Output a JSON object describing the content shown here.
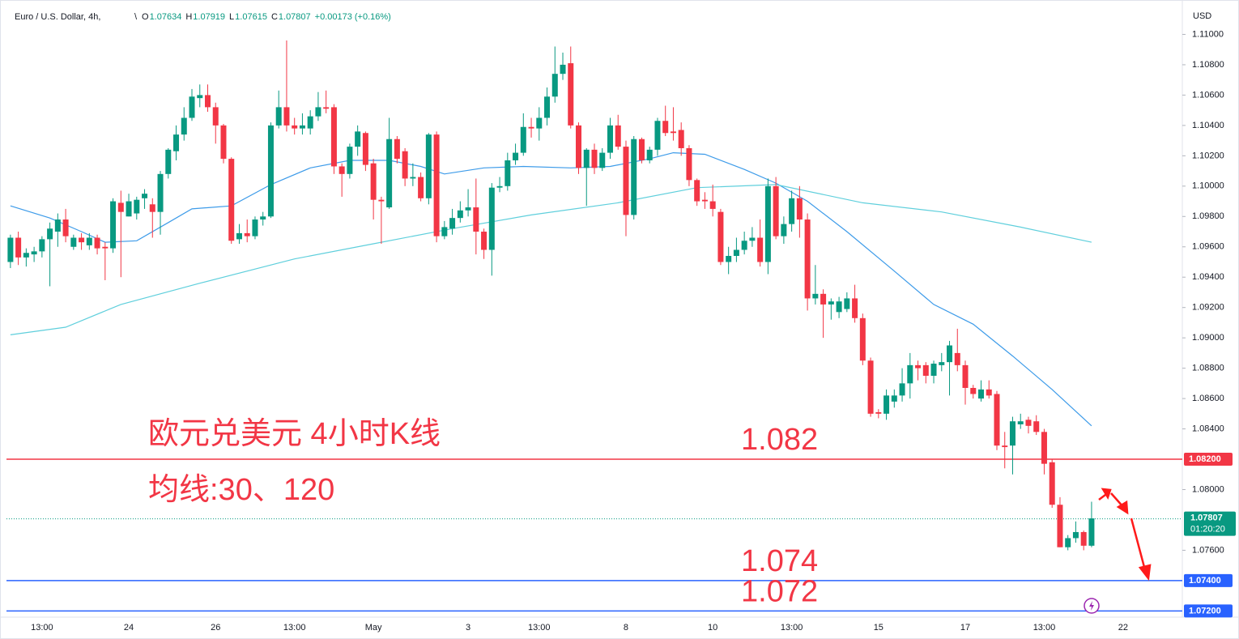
{
  "chart_data": {
    "type": "candlestick",
    "header": {
      "symbol": "Euro / U.S. Dollar, 4h,",
      "ohlc": [
        {
          "key": "O",
          "value": "1.07634"
        },
        {
          "key": "H",
          "value": "1.07919"
        },
        {
          "key": "L",
          "value": "1.07615"
        },
        {
          "key": "C",
          "value": "1.07807"
        }
      ],
      "change": "+0.00173 (+0.16%)"
    },
    "currency": "USD",
    "annotations": [
      "欧元兑美元 4小时K线",
      "均线:30、120"
    ],
    "up_color": "#089981",
    "down_color": "#f23645",
    "grid": false,
    "ylim": [
      1.0717,
      1.112
    ],
    "yticks": [
      {
        "value": 1.11,
        "label": "1.11000"
      },
      {
        "value": 1.108,
        "label": "1.10800"
      },
      {
        "value": 1.106,
        "label": "1.10600"
      },
      {
        "value": 1.104,
        "label": "1.10400"
      },
      {
        "value": 1.102,
        "label": "1.10200"
      },
      {
        "value": 1.1,
        "label": "1.10000"
      },
      {
        "value": 1.098,
        "label": "1.09800"
      },
      {
        "value": 1.096,
        "label": "1.09600"
      },
      {
        "value": 1.094,
        "label": "1.09400"
      },
      {
        "value": 1.092,
        "label": "1.09200"
      },
      {
        "value": 1.09,
        "label": "1.09000"
      },
      {
        "value": 1.088,
        "label": "1.08800"
      },
      {
        "value": 1.086,
        "label": "1.08600"
      },
      {
        "value": 1.084,
        "label": "1.08400"
      },
      {
        "value": 1.08,
        "label": "1.08000"
      },
      {
        "value": 1.076,
        "label": "1.07600"
      }
    ],
    "categories": [
      null,
      null,
      null,
      null,
      "13:00",
      null,
      null,
      null,
      null,
      null,
      null,
      null,
      null,
      null,
      null,
      "24",
      null,
      null,
      null,
      null,
      null,
      null,
      null,
      null,
      null,
      null,
      "26",
      null,
      null,
      null,
      null,
      null,
      null,
      null,
      null,
      null,
      "13:00",
      null,
      null,
      null,
      null,
      null,
      null,
      null,
      null,
      null,
      "May",
      null,
      null,
      null,
      null,
      null,
      null,
      null,
      null,
      null,
      null,
      null,
      "3",
      null,
      null,
      null,
      null,
      null,
      null,
      null,
      null,
      "13:00",
      null,
      null,
      null,
      null,
      null,
      null,
      null,
      null,
      null,
      null,
      "8",
      null,
      null,
      null,
      null,
      null,
      null,
      null,
      null,
      null,
      null,
      "10",
      null,
      null,
      null,
      null,
      null,
      null,
      null,
      null,
      null,
      "13:00",
      null,
      null,
      null,
      null,
      null,
      null,
      null,
      null,
      null,
      null,
      "15",
      null,
      null,
      null,
      null,
      null,
      null,
      null,
      null,
      null,
      null,
      "17",
      null,
      null,
      null,
      null,
      null,
      null,
      null,
      null,
      null,
      "13:00",
      null,
      null,
      null,
      null,
      null,
      null,
      null,
      null,
      null,
      "22",
      null,
      null,
      null,
      null,
      null,
      null,
      null
    ],
    "open": [
      1.095,
      1.0966,
      1.0953,
      1.0955,
      1.0957,
      1.0965,
      1.097,
      1.0978,
      1.096,
      1.0966,
      1.0961,
      1.0966,
      1.096,
      1.0959,
      1.0989,
      1.098,
      1.0982,
      1.0992,
      1.0988,
      1.0983,
      1.1008,
      1.1023,
      1.1034,
      1.1045,
      1.1058,
      1.106,
      1.1052,
      1.104,
      1.1018,
      1.0965,
      1.0969,
      1.0967,
      1.0978,
      1.098,
      1.104,
      1.1052,
      1.104,
      1.1038,
      1.1038,
      1.1046,
      1.1052,
      1.1052,
      1.1013,
      1.1008,
      1.1026,
      1.1035,
      1.1015,
      1.0991,
      1.0986,
      1.1031,
      1.1023,
      1.1005,
      1.1006,
      1.0992,
      1.1034,
      1.0967,
      1.0972,
      1.0979,
      1.0984,
      1.0986,
      1.097,
      1.0958,
      1.0999,
      1.1,
      1.1017,
      1.1022,
      1.1039,
      1.1038,
      1.1045,
      1.1059,
      1.1074,
      1.1081,
      1.104,
      1.1012,
      1.1024,
      1.1012,
      1.1022,
      1.104,
      1.1026,
      1.0981,
      1.1031,
      1.1017,
      1.1024,
      1.1043,
      1.1036,
      1.1037,
      1.1025,
      1.1004,
      1.0991,
      1.099,
      1.0983,
      1.095,
      1.0954,
      1.0958,
      1.0964,
      1.0966,
      1.095,
      1.1,
      1.0967,
      1.0975,
      1.0992,
      1.0978,
      1.0926,
      1.0929,
      1.0922,
      1.0917,
      1.0919,
      1.0926,
      1.0913,
      1.0885,
      1.0851,
      1.085,
      1.0858,
      1.0862,
      1.087,
      1.0882,
      1.0882,
      1.0875,
      1.0882,
      1.0884,
      1.089,
      1.0882,
      1.0867,
      1.086,
      1.0866,
      1.0863,
      1.0829,
      1.0829,
      1.0843,
      1.0846,
      1.0845,
      1.0838,
      1.0818,
      1.079,
      1.0762,
      1.0768,
      1.0772,
      1.0763,
      null,
      null,
      null,
      null,
      null,
      null,
      null,
      null,
      null,
      null,
      null
    ],
    "high": [
      1.0968,
      1.097,
      1.0959,
      1.096,
      1.0967,
      1.0976,
      1.0982,
      1.0985,
      1.0968,
      1.0969,
      1.0969,
      1.0968,
      1.0963,
      1.0992,
      1.0997,
      1.0995,
      1.0993,
      1.0998,
      1.0992,
      1.101,
      1.1025,
      1.104,
      1.1052,
      1.1064,
      1.1067,
      1.1067,
      1.1055,
      1.1041,
      1.1019,
      1.0975,
      1.0978,
      1.098,
      1.0983,
      1.1042,
      1.1063,
      1.1096,
      1.1045,
      1.1048,
      1.105,
      1.1062,
      1.1063,
      1.1054,
      1.1015,
      1.1028,
      1.104,
      1.1036,
      1.1018,
      1.0993,
      1.1045,
      1.1033,
      1.1025,
      1.1015,
      1.1009,
      1.1035,
      1.1036,
      1.0977,
      1.0985,
      1.099,
      1.0998,
      1.1005,
      1.0972,
      1.1002,
      1.1006,
      1.1022,
      1.1028,
      1.1048,
      1.1045,
      1.1052,
      1.1065,
      1.1092,
      1.1088,
      1.1092,
      1.1042,
      1.1025,
      1.1028,
      1.1025,
      1.1045,
      1.1047,
      1.103,
      1.1033,
      1.1032,
      1.1026,
      1.1045,
      1.1053,
      1.1052,
      1.1042,
      1.1027,
      1.1005,
      1.0996,
      1.1001,
      1.0985,
      1.096,
      1.0966,
      1.097,
      1.0973,
      1.0978,
      1.1005,
      1.1006,
      1.098,
      1.0997,
      1.1,
      1.0982,
      1.0948,
      1.0932,
      1.0926,
      1.0927,
      1.093,
      1.0935,
      1.0916,
      1.0887,
      1.0853,
      1.0866,
      1.0866,
      1.088,
      1.089,
      1.0885,
      1.0884,
      1.0885,
      1.089,
      1.0898,
      1.0906,
      1.0885,
      1.0869,
      1.0872,
      1.0872,
      1.0865,
      1.0838,
      1.0848,
      1.085,
      1.0848,
      1.0849,
      1.084,
      1.082,
      1.0795,
      1.077,
      1.0779,
      1.0773,
      1.0792,
      null,
      null,
      null,
      null,
      null,
      null,
      null,
      null,
      null,
      null,
      null
    ],
    "low": [
      1.0946,
      1.0948,
      1.0947,
      1.095,
      1.0953,
      1.0934,
      1.096,
      1.0963,
      1.0958,
      1.0958,
      1.0958,
      1.0955,
      1.0938,
      1.0956,
      1.094,
      1.098,
      1.0978,
      1.0985,
      1.0966,
      1.0968,
      1.1005,
      1.1017,
      1.103,
      1.1043,
      1.1052,
      1.1049,
      1.1028,
      1.1015,
      1.0962,
      1.0962,
      1.0963,
      1.0965,
      1.0974,
      1.0979,
      1.1038,
      1.1036,
      1.1034,
      1.1034,
      1.1034,
      1.1043,
      1.1048,
      1.1008,
      1.0993,
      1.1005,
      1.102,
      1.101,
      1.0978,
      1.0962,
      1.0985,
      1.1015,
      1.1,
      1.1,
      1.099,
      1.0988,
      1.0963,
      1.0965,
      1.0968,
      1.0976,
      1.098,
      1.0955,
      1.0952,
      1.0941,
      1.0996,
      1.0997,
      1.1014,
      1.102,
      1.1032,
      1.103,
      1.104,
      1.1055,
      1.107,
      1.1038,
      1.1008,
      1.0987,
      1.1008,
      1.101,
      1.1018,
      1.1024,
      1.0967,
      1.0978,
      1.1015,
      1.1015,
      1.102,
      1.1033,
      1.103,
      1.102,
      1.1,
      1.0987,
      1.0985,
      1.098,
      1.0948,
      1.0942,
      1.095,
      1.0955,
      1.096,
      1.0947,
      1.0942,
      1.0965,
      1.0962,
      1.097,
      1.0966,
      1.0918,
      1.0922,
      1.09,
      1.0912,
      1.0913,
      1.0917,
      1.091,
      1.0882,
      1.0848,
      1.0847,
      1.0846,
      1.0854,
      1.0858,
      1.086,
      1.0872,
      1.087,
      1.087,
      1.0878,
      1.0862,
      1.0878,
      1.0856,
      1.086,
      1.0858,
      1.086,
      1.0826,
      1.0814,
      1.081,
      1.084,
      1.0837,
      1.0836,
      1.081,
      1.0788,
      1.0762,
      1.076,
      1.0765,
      1.076,
      1.0762,
      null,
      null,
      null,
      null,
      null,
      null,
      null,
      null,
      null,
      null,
      null
    ],
    "close": [
      1.0966,
      1.0953,
      1.0956,
      1.0957,
      1.0965,
      1.0972,
      1.0978,
      1.0967,
      1.0966,
      1.0963,
      1.0966,
      1.0959,
      1.0959,
      1.099,
      1.0983,
      1.099,
      1.0991,
      1.0995,
      1.0983,
      1.1008,
      1.1024,
      1.1034,
      1.1045,
      1.1059,
      1.106,
      1.1052,
      1.104,
      1.1018,
      1.0964,
      1.0969,
      1.0967,
      1.0978,
      1.098,
      1.104,
      1.1052,
      1.104,
      1.1038,
      1.104,
      1.1046,
      1.1052,
      1.1051,
      1.1013,
      1.1008,
      1.1026,
      1.1036,
      1.1014,
      1.0991,
      1.099,
      1.1031,
      1.1018,
      1.1005,
      1.1006,
      1.0992,
      1.1034,
      1.0967,
      1.0973,
      1.0979,
      1.0984,
      1.0986,
      1.097,
      1.0958,
      1.0999,
      1.1,
      1.1017,
      1.1022,
      1.1039,
      1.1038,
      1.1045,
      1.1059,
      1.1074,
      1.108,
      1.104,
      1.1012,
      1.1024,
      1.1012,
      1.1022,
      1.104,
      1.1026,
      1.0981,
      1.1031,
      1.1017,
      1.1024,
      1.1043,
      1.1035,
      1.1035,
      1.1025,
      1.1004,
      1.099,
      1.099,
      1.0985,
      1.095,
      1.0954,
      1.0958,
      1.0964,
      1.0966,
      1.095,
      1.1,
      1.0967,
      1.0975,
      1.0992,
      1.0978,
      1.0926,
      1.0929,
      1.0922,
      1.0924,
      1.0924,
      1.0926,
      1.0913,
      1.0885,
      1.085,
      1.085,
      1.0862,
      1.0862,
      1.087,
      1.0882,
      1.088,
      1.0875,
      1.0883,
      1.0884,
      1.0895,
      1.0882,
      1.0867,
      1.0863,
      1.0866,
      1.0862,
      1.0829,
      1.0828,
      1.0845,
      1.0845,
      1.0842,
      1.0838,
      1.0817,
      1.079,
      1.0762,
      1.0768,
      1.0772,
      1.0763,
      1.0781,
      null,
      null,
      null,
      null,
      null,
      null,
      null,
      null,
      null,
      null,
      null
    ],
    "moving_averages": [
      {
        "color": "#3d9be9",
        "x": [
          0,
          5,
          9,
          12,
          16,
          20,
          23,
          28,
          33,
          38,
          43,
          48,
          52,
          55,
          60,
          65,
          71,
          76,
          81,
          84,
          88,
          93,
          97,
          101,
          106,
          112,
          117,
          122,
          127,
          132,
          137
        ],
        "values": [
          1.0987,
          1.0979,
          1.097,
          1.0963,
          1.0964,
          1.0976,
          1.0985,
          1.0987,
          1.1001,
          1.1012,
          1.1017,
          1.1017,
          1.1013,
          1.1008,
          1.1012,
          1.1013,
          1.1012,
          1.1013,
          1.1018,
          1.1022,
          1.1021,
          1.1011,
          1.1002,
          1.099,
          1.097,
          1.0944,
          1.0922,
          1.0909,
          1.0888,
          1.0866,
          1.0842
        ]
      },
      {
        "color": "#5fcfdc",
        "x": [
          0,
          7,
          14,
          24,
          36,
          46,
          56,
          66,
          77,
          87,
          97,
          108,
          118,
          128,
          137
        ],
        "values": [
          1.0902,
          1.0907,
          1.0922,
          1.0936,
          1.0952,
          1.0962,
          1.0972,
          1.0981,
          1.0989,
          1.0999,
          1.1001,
          1.0989,
          1.0983,
          1.0973,
          1.0963
        ]
      }
    ],
    "levels": [
      {
        "value": 1.082,
        "label": "1.082",
        "axis_label": "1.08200",
        "color": "#f23645"
      },
      {
        "value": 1.074,
        "label": "1.074",
        "axis_label": "1.07400",
        "color": "#2962ff"
      },
      {
        "value": 1.072,
        "label": "1.072",
        "axis_label": "1.07200",
        "color": "#2962ff"
      }
    ],
    "last_price": {
      "value": 1.07807,
      "label": "1.07807",
      "countdown": "01:20:20",
      "color": "#089981"
    }
  }
}
